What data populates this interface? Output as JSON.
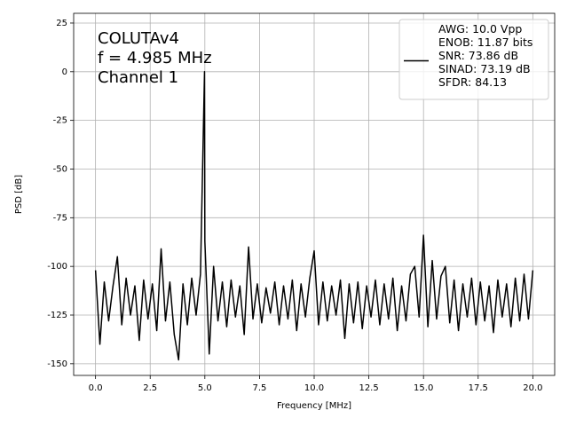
{
  "chart_data": {
    "type": "line",
    "xlabel": "Frequency [MHz]",
    "ylabel": "PSD [dB]",
    "annotation": [
      "COLUTAv4",
      "f = 4.985 MHz",
      "Channel 1"
    ],
    "xlim": [
      -1.0,
      21.0
    ],
    "xticks": [
      {
        "value": 0,
        "label": "0.0"
      },
      {
        "value": 2.5,
        "label": "2.5"
      },
      {
        "value": 5,
        "label": "5.0"
      },
      {
        "value": 7.5,
        "label": "7.5"
      },
      {
        "value": 10,
        "label": "10.0"
      },
      {
        "value": 12.5,
        "label": "12.5"
      },
      {
        "value": 15,
        "label": "15.0"
      },
      {
        "value": 17.5,
        "label": "17.5"
      },
      {
        "value": 20,
        "label": "20.0"
      }
    ],
    "ylim": [
      -156,
      30
    ],
    "yticks": [
      25,
      0,
      -25,
      -50,
      -75,
      -100,
      -125,
      -150
    ],
    "grid": true,
    "legend": "upper right",
    "x": [
      0,
      0.2,
      0.4,
      0.6,
      0.8,
      1.0,
      1.2,
      1.4,
      1.6,
      1.8,
      2.0,
      2.2,
      2.4,
      2.6,
      2.8,
      3.0,
      3.2,
      3.4,
      3.6,
      3.8,
      4.0,
      4.2,
      4.4,
      4.6,
      4.8,
      4.985,
      5.0,
      5.2,
      5.4,
      5.6,
      5.8,
      6.0,
      6.2,
      6.4,
      6.6,
      6.8,
      7.0,
      7.2,
      7.4,
      7.6,
      7.8,
      8.0,
      8.2,
      8.4,
      8.6,
      8.8,
      9.0,
      9.2,
      9.4,
      9.6,
      9.8,
      10.0,
      10.2,
      10.4,
      10.6,
      10.8,
      11.0,
      11.2,
      11.4,
      11.6,
      11.8,
      12.0,
      12.2,
      12.4,
      12.6,
      12.8,
      13.0,
      13.2,
      13.4,
      13.6,
      13.8,
      14.0,
      14.2,
      14.4,
      14.6,
      14.8,
      15.0,
      15.2,
      15.4,
      15.6,
      15.8,
      16.0,
      16.2,
      16.4,
      16.6,
      16.8,
      17.0,
      17.2,
      17.4,
      17.6,
      17.8,
      18.0,
      18.2,
      18.4,
      18.6,
      18.8,
      19.0,
      19.2,
      19.4,
      19.6,
      19.8,
      20.0
    ],
    "series": [
      {
        "name": "AWG: 10.0 Vpp\nENOB: 11.87 bits\nSNR: 73.86 dB\nSINAD: 73.19 dB\nSFDR: 84.13",
        "color": "#000000",
        "values": [
          -102,
          -140,
          -108,
          -128,
          -110,
          -95,
          -130,
          -106,
          -125,
          -110,
          -138,
          -107,
          -127,
          -109,
          -133,
          -91,
          -128,
          -108,
          -135,
          -148,
          -109,
          -130,
          -106,
          -125,
          -104,
          0,
          -87,
          -145,
          -100,
          -128,
          -108,
          -131,
          -107,
          -126,
          -110,
          -135,
          -90,
          -127,
          -109,
          -129,
          -111,
          -124,
          -108,
          -130,
          -110,
          -127,
          -107,
          -133,
          -109,
          -126,
          -106,
          -92,
          -130,
          -108,
          -128,
          -110,
          -125,
          -107,
          -137,
          -109,
          -129,
          -108,
          -132,
          -110,
          -126,
          -107,
          -130,
          -109,
          -127,
          -106,
          -133,
          -110,
          -128,
          -104,
          -100,
          -126,
          -84,
          -131,
          -97,
          -127,
          -105,
          -100,
          -129,
          -107,
          -133,
          -109,
          -126,
          -106,
          -130,
          -108,
          -128,
          -110,
          -134,
          -107,
          -126,
          -109,
          -131,
          -106,
          -128,
          -104,
          -127,
          -102
        ]
      }
    ]
  }
}
